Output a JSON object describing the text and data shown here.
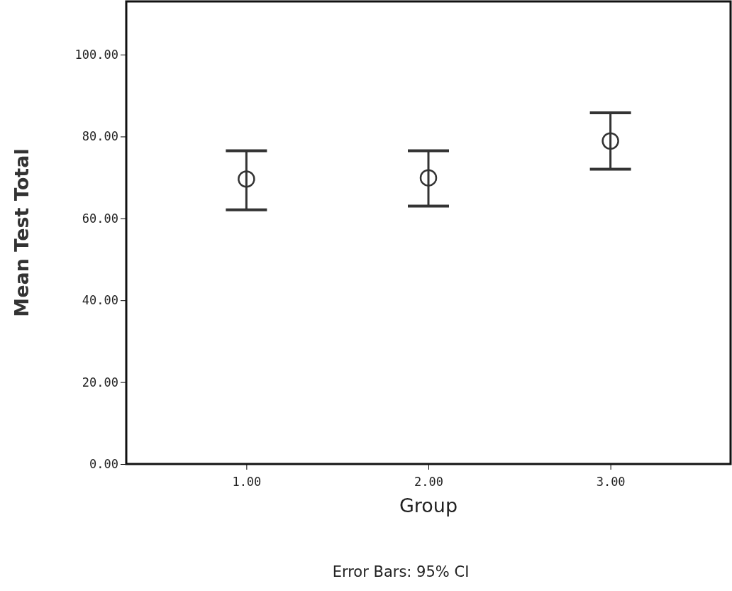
{
  "chart_data": {
    "type": "scatter",
    "xlabel": "Group",
    "ylabel": "Mean Test Total",
    "categories": [
      "1.00",
      "2.00",
      "3.00"
    ],
    "values": [
      69.6,
      69.9,
      78.9
    ],
    "errors": [
      [
        62.1,
        76.5
      ],
      [
        63.0,
        76.5
      ],
      [
        72.0,
        85.8
      ]
    ],
    "color": "#333333",
    "ylim": [
      0,
      113
    ],
    "yticks": [
      {
        "value": 0,
        "label": "0.00"
      },
      {
        "value": 20,
        "label": "20.00"
      },
      {
        "value": 40,
        "label": "40.00"
      },
      {
        "value": 60,
        "label": "60.00"
      },
      {
        "value": 80,
        "label": "80.00"
      },
      {
        "value": 100,
        "label": "100.00"
      }
    ],
    "marker": "circle",
    "grid": false,
    "annotations": [
      "Error Bars: 95% CI"
    ]
  }
}
